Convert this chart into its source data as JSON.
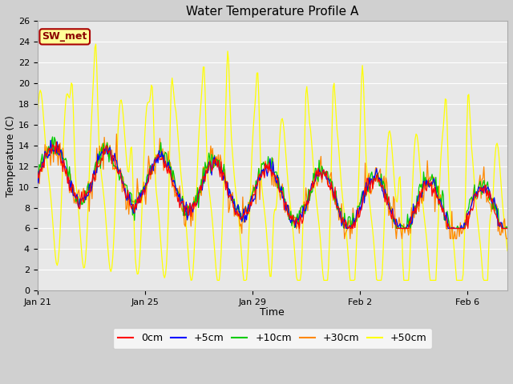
{
  "title": "Water Temperature Profile A",
  "xlabel": "Time",
  "ylabel": "Temperature (C)",
  "ylim": [
    0,
    26
  ],
  "yticks": [
    0,
    2,
    4,
    6,
    8,
    10,
    12,
    14,
    16,
    18,
    20,
    22,
    24,
    26
  ],
  "xtick_labels": [
    "Jan 21",
    "Jan 25",
    "Jan 29",
    "Feb 2",
    "Feb 6"
  ],
  "xtick_positions": [
    0,
    4,
    8,
    12,
    16
  ],
  "xlim": [
    0,
    17.5
  ],
  "fig_bg": "#d0d0d0",
  "plot_bg": "#e8e8e8",
  "grid_color": "#ffffff",
  "line_colors": {
    "0cm": "#ff0000",
    "+5cm": "#0000ff",
    "+10cm": "#00cc00",
    "+30cm": "#ff8800",
    "+50cm": "#ffff00"
  },
  "legend_label_box": "SW_met",
  "legend_box_bg": "#ffff99",
  "legend_box_border": "#aa0000"
}
